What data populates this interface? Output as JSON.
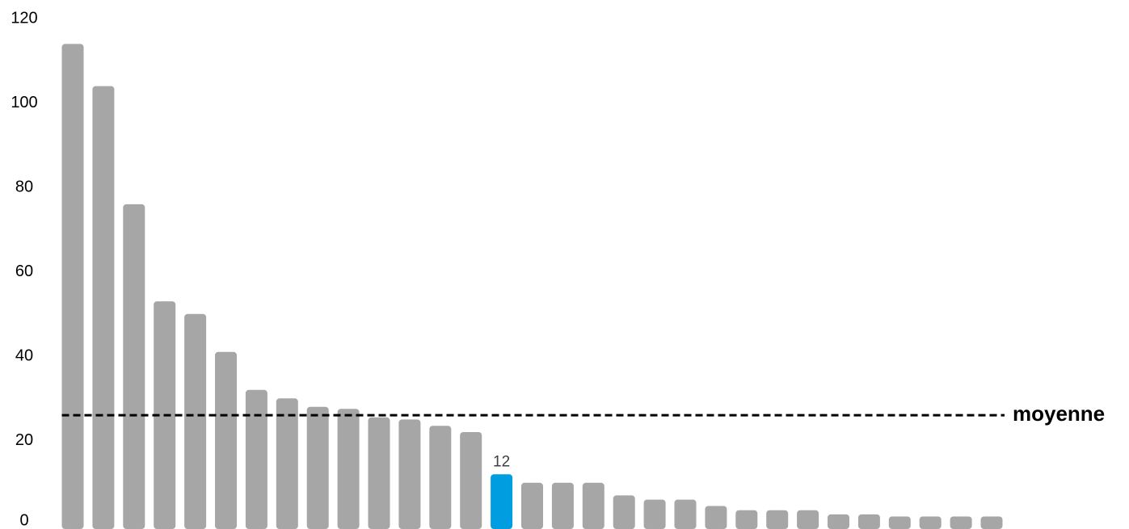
{
  "chart_data": {
    "type": "bar",
    "values": [
      114,
      104,
      76,
      53,
      50,
      41,
      32,
      30,
      28,
      27.5,
      25.5,
      25,
      23.5,
      22,
      12,
      10,
      10,
      10,
      7,
      6,
      6,
      4.5,
      3.5,
      3.5,
      3.5,
      2.5,
      2.5,
      2,
      2,
      2,
      2
    ],
    "yticks": [
      "0",
      "20",
      "40",
      "60",
      "80",
      "100",
      "120"
    ],
    "ylim": [
      0,
      120
    ],
    "highlight_index": 14,
    "highlight_label": "12",
    "reference_line": {
      "label": "moyenne",
      "value": 26,
      "style": "dashed"
    },
    "grid": false,
    "colors": {
      "bar": "#a6a6a6",
      "highlight": "#009ee0",
      "reference_line": "#000000",
      "data_label": "#404040"
    }
  }
}
